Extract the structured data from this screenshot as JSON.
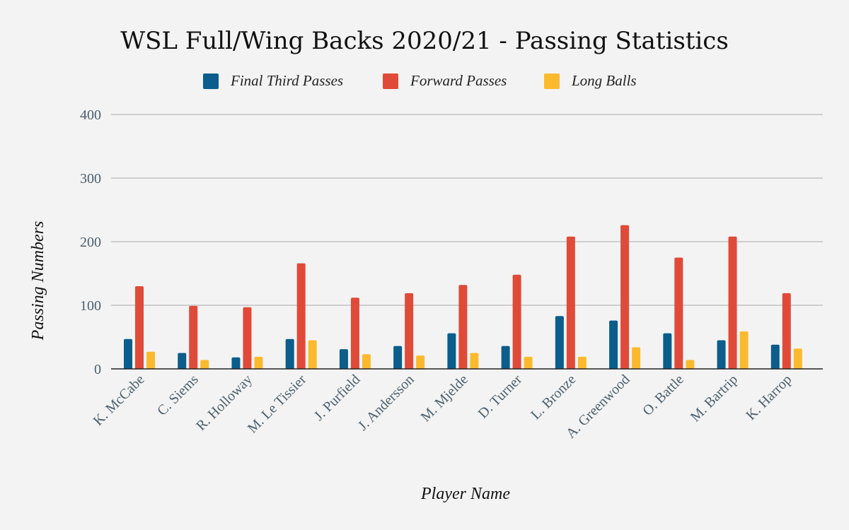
{
  "chart_data": {
    "type": "bar",
    "title": "WSL Full/Wing Backs 2020/21 - Passing Statistics",
    "xlabel": "Player Name",
    "ylabel": "Passing Numbers",
    "ylim": [
      0,
      400
    ],
    "yticks": [
      "0",
      "100",
      "200",
      "300",
      "400"
    ],
    "grid": true,
    "legend_position": "top",
    "categories": [
      "K. McCabe",
      "C. Siems",
      "R. Holloway",
      "M. Le Tissier",
      "J. Purfield",
      "J. Andersson",
      "M. Mjelde",
      "D. Turner",
      "L. Bronze",
      "A. Greenwood",
      "O. Battle",
      "M. Bartrip",
      "K. Harrop"
    ],
    "series": [
      {
        "name": "Final Third Passes",
        "color": "#0b5d8c",
        "values": [
          47,
          25,
          18,
          47,
          31,
          36,
          56,
          36,
          83,
          76,
          56,
          45,
          38
        ]
      },
      {
        "name": "Forward Passes",
        "color": "#e04a38",
        "values": [
          130,
          99,
          97,
          166,
          112,
          119,
          132,
          148,
          208,
          226,
          175,
          208,
          119
        ]
      },
      {
        "name": "Long Balls",
        "color": "#fbba2e",
        "values": [
          27,
          14,
          19,
          45,
          23,
          21,
          25,
          19,
          19,
          34,
          14,
          59,
          32
        ]
      }
    ]
  }
}
